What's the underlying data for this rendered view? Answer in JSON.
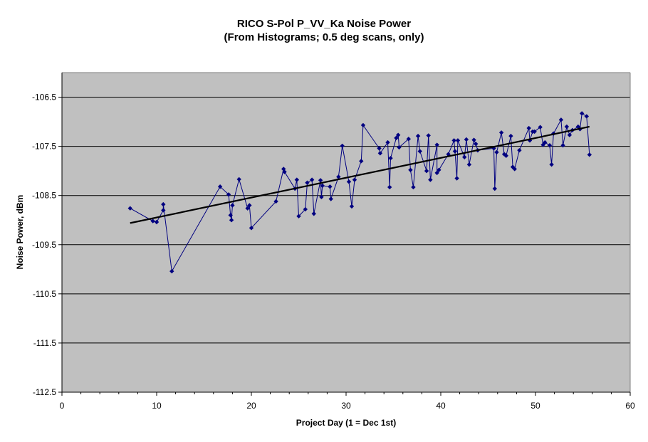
{
  "chart_data": {
    "type": "scatter",
    "title": "RICO S-Pol P_VV_Ka Noise Power",
    "subtitle": "(From Histograms; 0.5 deg scans, only)",
    "xlabel": "Project Day (1 = Dec 1st)",
    "ylabel": "Noise Power, dBm",
    "xlim": [
      0,
      60
    ],
    "ylim": [
      -112.5,
      -106
    ],
    "x_ticks": [
      0,
      10,
      20,
      30,
      40,
      50,
      60
    ],
    "y_ticks": [
      -112.5,
      -111.5,
      -110.5,
      -109.5,
      -108.5,
      -107.5,
      -106.5
    ],
    "grid": "horizontal",
    "legend": "none",
    "colors": {
      "plot_background": "#c0c0c0",
      "series": "#000080",
      "trendline": "#000000",
      "gridline": "#000000"
    },
    "series": [
      {
        "marker": "diamond",
        "connected": true,
        "points": [
          [
            7.2,
            -108.76
          ],
          [
            9.6,
            -109.02
          ],
          [
            10.0,
            -109.04
          ],
          [
            10.7,
            -108.8
          ],
          [
            10.7,
            -108.68
          ],
          [
            11.6,
            -110.04
          ],
          [
            16.7,
            -108.32
          ],
          [
            17.6,
            -108.48
          ],
          [
            17.8,
            -108.9
          ],
          [
            17.9,
            -109.0
          ],
          [
            18.0,
            -108.7
          ],
          [
            18.7,
            -108.17
          ],
          [
            19.6,
            -108.76
          ],
          [
            19.8,
            -108.7
          ],
          [
            20.0,
            -109.16
          ],
          [
            22.6,
            -108.62
          ],
          [
            23.4,
            -107.96
          ],
          [
            23.5,
            -108.02
          ],
          [
            24.6,
            -108.36
          ],
          [
            24.8,
            -108.18
          ],
          [
            25.0,
            -108.92
          ],
          [
            25.7,
            -108.78
          ],
          [
            25.9,
            -108.24
          ],
          [
            26.4,
            -108.18
          ],
          [
            26.6,
            -108.87
          ],
          [
            27.3,
            -108.19
          ],
          [
            27.4,
            -108.53
          ],
          [
            27.5,
            -108.3
          ],
          [
            28.3,
            -108.32
          ],
          [
            28.4,
            -108.57
          ],
          [
            29.2,
            -108.12
          ],
          [
            29.6,
            -107.49
          ],
          [
            30.3,
            -108.22
          ],
          [
            30.6,
            -108.72
          ],
          [
            30.9,
            -108.18
          ],
          [
            31.6,
            -107.8
          ],
          [
            31.8,
            -107.07
          ],
          [
            33.5,
            -107.54
          ],
          [
            33.6,
            -107.64
          ],
          [
            34.4,
            -107.42
          ],
          [
            34.6,
            -108.33
          ],
          [
            34.7,
            -107.74
          ],
          [
            35.3,
            -107.33
          ],
          [
            35.5,
            -107.27
          ],
          [
            35.6,
            -107.52
          ],
          [
            36.6,
            -107.35
          ],
          [
            36.8,
            -107.98
          ],
          [
            37.1,
            -108.33
          ],
          [
            37.6,
            -107.29
          ],
          [
            37.8,
            -107.6
          ],
          [
            38.5,
            -108.0
          ],
          [
            38.7,
            -107.28
          ],
          [
            38.9,
            -108.18
          ],
          [
            39.6,
            -107.47
          ],
          [
            39.6,
            -108.04
          ],
          [
            39.8,
            -107.98
          ],
          [
            40.8,
            -107.66
          ],
          [
            41.4,
            -107.38
          ],
          [
            41.5,
            -107.6
          ],
          [
            41.7,
            -108.15
          ],
          [
            41.8,
            -107.38
          ],
          [
            42.5,
            -107.72
          ],
          [
            42.7,
            -107.36
          ],
          [
            43.0,
            -107.87
          ],
          [
            43.5,
            -107.37
          ],
          [
            43.7,
            -107.45
          ],
          [
            43.9,
            -107.58
          ],
          [
            45.6,
            -107.54
          ],
          [
            45.7,
            -108.36
          ],
          [
            45.9,
            -107.62
          ],
          [
            46.4,
            -107.22
          ],
          [
            46.7,
            -107.66
          ],
          [
            46.9,
            -107.69
          ],
          [
            47.4,
            -107.29
          ],
          [
            47.6,
            -107.92
          ],
          [
            47.8,
            -107.96
          ],
          [
            48.3,
            -107.58
          ],
          [
            49.3,
            -107.13
          ],
          [
            49.4,
            -107.38
          ],
          [
            49.7,
            -107.2
          ],
          [
            49.9,
            -107.2
          ],
          [
            50.5,
            -107.11
          ],
          [
            50.8,
            -107.47
          ],
          [
            51.0,
            -107.42
          ],
          [
            51.5,
            -107.48
          ],
          [
            51.7,
            -107.87
          ],
          [
            51.9,
            -107.24
          ],
          [
            52.7,
            -106.96
          ],
          [
            52.9,
            -107.48
          ],
          [
            53.3,
            -107.1
          ],
          [
            53.6,
            -107.27
          ],
          [
            53.9,
            -107.17
          ],
          [
            54.5,
            -107.1
          ],
          [
            54.7,
            -107.15
          ],
          [
            54.9,
            -106.83
          ],
          [
            55.4,
            -106.89
          ],
          [
            55.7,
            -107.67
          ]
        ]
      }
    ],
    "trendline": {
      "type": "linear",
      "start": [
        7.2,
        -109.06
      ],
      "end": [
        55.7,
        -107.1
      ]
    }
  }
}
